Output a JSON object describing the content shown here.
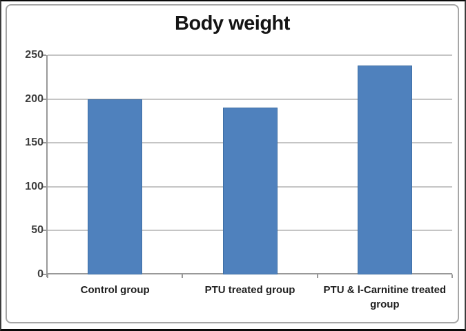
{
  "chart_data": {
    "type": "bar",
    "title": "Body weight",
    "categories": [
      "Control group",
      "PTU treated group",
      "PTU & l-Carnitine treated group"
    ],
    "values": [
      200,
      190,
      238
    ],
    "series": [
      {
        "name": "Body weight",
        "values": [
          200,
          190,
          238
        ]
      }
    ],
    "xlabel": "",
    "ylabel": "",
    "ylim": [
      0,
      250
    ],
    "yticks": [
      0,
      50,
      100,
      150,
      200,
      250
    ],
    "grid": true,
    "legend_position": "none",
    "colors": {
      "bar_fill": "#4F81BD",
      "bar_border": "#3D6DA3",
      "gridline": "#C5C5C5",
      "axis": "#999999",
      "y_tick_label": "#3D3D3D",
      "category_label": "#1F1F1F",
      "title": "#141414",
      "panel_border": "#A6A6A6"
    }
  }
}
